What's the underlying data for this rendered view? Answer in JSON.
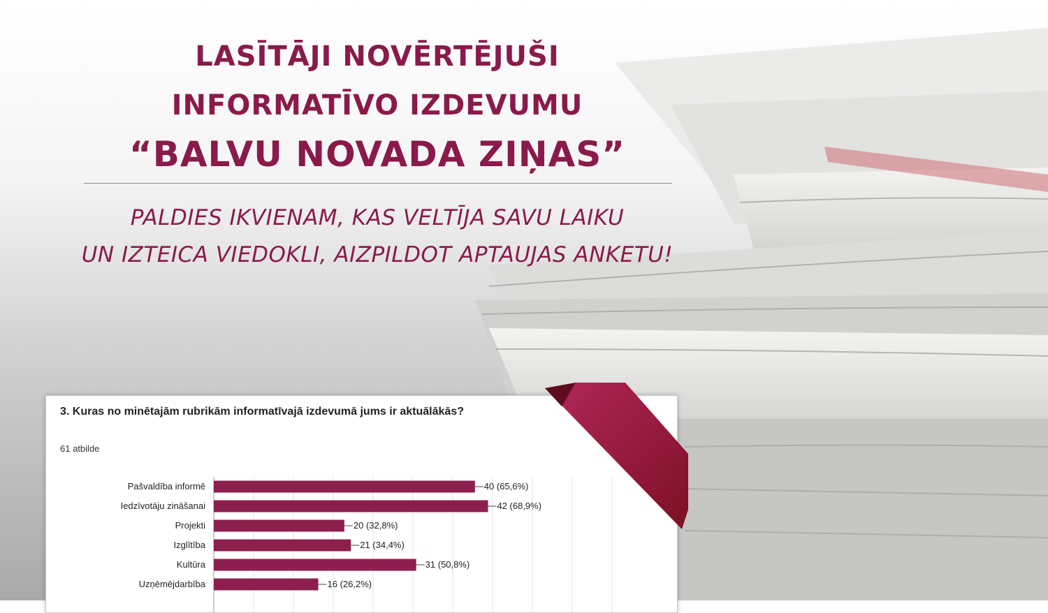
{
  "header": {
    "title_line1": "LASĪTĀJI NOVĒRTĒJUŠI",
    "title_line2": "INFORMATĪVO IZDEVUMU",
    "title_line3": "“BALVU NOVADA ZIŅAS”",
    "subtitle_line1": "PALDIES IKVIENAM, KAS VELTĪJA SAVU LAIKU",
    "subtitle_line2": "UN IZTEICA VIEDOKLI, AIZPILDOT APTAUJAS ANKETU!"
  },
  "colors": {
    "accent": "#8a1a4a",
    "bar": "#8c1f4d"
  },
  "chart_data": {
    "type": "bar",
    "orientation": "horizontal",
    "title": "3. Kuras no minētajām rubrikām informatīvajā izdevumā jums ir aktuālākās?",
    "subtitle": "61 atbilde",
    "categories": [
      "Pašvaldība informē",
      "Iedzīvotāju zināšanai",
      "Projekti",
      "Izglītība",
      "Kultūra",
      "Uzņēmējdarbība"
    ],
    "values": [
      40,
      42,
      20,
      21,
      31,
      16
    ],
    "labels": [
      "40 (65,6%)",
      "42 (68,9%)",
      "20 (32,8%)",
      "21 (34,4%)",
      "31 (50,8%)",
      "16 (26,2%)"
    ],
    "xlim": [
      0,
      61
    ],
    "grid": true,
    "legend": "none"
  }
}
